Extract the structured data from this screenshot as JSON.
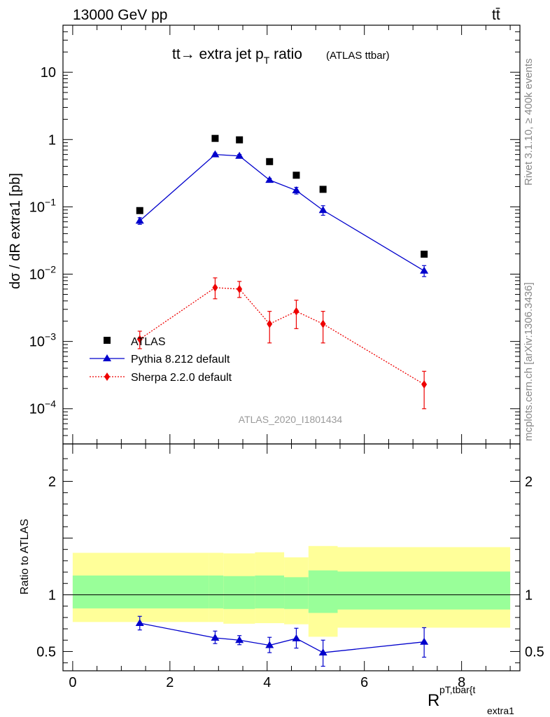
{
  "header": {
    "energy_label": "13000 GeV pp",
    "process_label": "tt̄",
    "plot_title_main": "tt→ extra jet p",
    "plot_title_sub": "T",
    "plot_title_tail": " ratio",
    "plot_title_small": "(ATLAS ttbar)",
    "analysis_id": "ATLAS_2020_I1801434",
    "side_label_top": "Rivet 3.1.10, ≥ 400k events",
    "side_label_bottom": "mcplots.cern.ch [arXiv:1306.3436]"
  },
  "axes": {
    "ylabel_upper": "dσ / dR extra1 [pb]",
    "ylabel_lower": "Ratio to ATLAS",
    "xlabel_main": "R",
    "xlabel_sup": "pT,tbar{t",
    "xlabel_sub": "extra1"
  },
  "legend": {
    "atlas": "ATLAS",
    "pythia": "Pythia 8.212 default",
    "sherpa": "Sherpa 2.2.0 default"
  },
  "colors": {
    "data": "#000000",
    "pythia": "#0000cc",
    "sherpa": "#ee0000",
    "band_inner": "#99ff99",
    "band_outer": "#ffff99"
  },
  "chart_data": [
    {
      "type": "scatter",
      "panel": "main",
      "yscale": "log",
      "xlim": [
        -0.2,
        9.2
      ],
      "ylim": [
        3e-05,
        50
      ],
      "yticks": [
        0.0001,
        0.001,
        0.01,
        0.1,
        1,
        10
      ],
      "ytick_labels": [
        "10^-4",
        "10^-3",
        "10^-2",
        "10^-1",
        "1",
        "10"
      ],
      "series": [
        {
          "name": "ATLAS",
          "x": [
            1.38,
            2.93,
            3.43,
            4.05,
            4.6,
            5.15,
            7.23
          ],
          "y": [
            0.088,
            1.04,
            0.99,
            0.47,
            0.295,
            0.182,
            0.0198
          ]
        },
        {
          "name": "Pythia 8.212 default",
          "x": [
            1.38,
            2.93,
            3.43,
            4.05,
            4.6,
            5.15,
            7.23
          ],
          "y": [
            0.062,
            0.6,
            0.57,
            0.25,
            0.175,
            0.089,
            0.0112
          ],
          "yerr_low": [
            0.055,
            0.57,
            0.54,
            0.235,
            0.155,
            0.075,
            0.0092
          ],
          "yerr_high": [
            0.069,
            0.63,
            0.6,
            0.265,
            0.195,
            0.104,
            0.0134
          ]
        },
        {
          "name": "Sherpa 2.2.0 default",
          "x": [
            1.38,
            2.93,
            3.43,
            4.05,
            4.6,
            5.15,
            7.23
          ],
          "y": [
            0.00108,
            0.0063,
            0.006,
            0.00182,
            0.0028,
            0.00182,
            0.00023
          ],
          "yerr_low": [
            0.00078,
            0.0043,
            0.0045,
            0.00095,
            0.00155,
            0.00095,
            0.0001
          ],
          "yerr_high": [
            0.00142,
            0.0088,
            0.0078,
            0.0028,
            0.0041,
            0.0028,
            0.00036
          ]
        }
      ]
    },
    {
      "type": "line",
      "panel": "ratio",
      "xlim": [
        -0.2,
        9.2
      ],
      "ylim": [
        0.33,
        2.33
      ],
      "yticks": [
        0.5,
        1,
        2
      ],
      "xticks": [
        0,
        2,
        4,
        6,
        8
      ],
      "bands": {
        "edges": [
          0,
          2.8,
          3.1,
          3.75,
          4.35,
          4.85,
          5.45,
          9.0
        ],
        "inner_low": [
          0.88,
          0.88,
          0.875,
          0.88,
          0.875,
          0.84,
          0.87
        ],
        "inner_high": [
          1.17,
          1.17,
          1.165,
          1.17,
          1.155,
          1.215,
          1.205
        ],
        "outer_low": [
          0.76,
          0.76,
          0.745,
          0.75,
          0.74,
          0.63,
          0.71
        ],
        "outer_high": [
          1.37,
          1.37,
          1.365,
          1.375,
          1.33,
          1.43,
          1.42
        ]
      },
      "series": [
        {
          "name": "Pythia 8.212 default",
          "x": [
            1.38,
            2.93,
            3.43,
            4.05,
            4.6,
            5.15,
            7.23
          ],
          "y": [
            0.75,
            0.62,
            0.6,
            0.555,
            0.615,
            0.49,
            0.585
          ],
          "yerr_low": [
            0.69,
            0.57,
            0.56,
            0.49,
            0.53,
            0.37,
            0.45
          ],
          "yerr_high": [
            0.81,
            0.68,
            0.64,
            0.625,
            0.705,
            0.6,
            0.71
          ]
        }
      ]
    }
  ]
}
